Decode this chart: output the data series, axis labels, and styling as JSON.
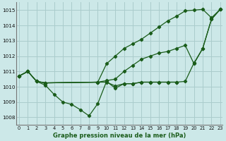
{
  "xlabel": "Graphe pression niveau de la mer (hPa)",
  "xlim": [
    -0.3,
    23.3
  ],
  "ylim": [
    1007.5,
    1015.5
  ],
  "yticks": [
    1008,
    1009,
    1010,
    1011,
    1012,
    1013,
    1014,
    1015
  ],
  "xticks": [
    0,
    1,
    2,
    3,
    4,
    5,
    6,
    7,
    8,
    9,
    10,
    11,
    12,
    13,
    14,
    15,
    16,
    17,
    18,
    19,
    20,
    21,
    22,
    23
  ],
  "background_color": "#cce8e8",
  "grid_color": "#aacccc",
  "line_color": "#1a5c1a",
  "line1_x": [
    0,
    1,
    2,
    3,
    9,
    10,
    11,
    12,
    13,
    14,
    15,
    16,
    17,
    18,
    19,
    20,
    21,
    22,
    23
  ],
  "line1_y": [
    1010.7,
    1011.0,
    1010.35,
    1010.25,
    1010.3,
    1011.5,
    1012.0,
    1012.5,
    1012.8,
    1013.1,
    1013.5,
    1013.9,
    1014.3,
    1014.6,
    1014.95,
    1015.0,
    1015.05,
    1014.5,
    1015.05
  ],
  "line2_x": [
    0,
    1,
    2,
    3,
    9,
    10,
    11,
    12,
    13,
    14,
    15,
    16,
    17,
    18,
    19,
    20,
    21,
    22,
    23
  ],
  "line2_y": [
    1010.7,
    1011.0,
    1010.35,
    1010.25,
    1010.3,
    1010.4,
    1010.5,
    1011.0,
    1011.4,
    1011.8,
    1012.0,
    1012.2,
    1012.3,
    1012.5,
    1012.7,
    1011.5,
    1012.5,
    1014.4,
    1015.05
  ],
  "line3_x": [
    0,
    1,
    2,
    3,
    9,
    10,
    11,
    12,
    13,
    14,
    15,
    16,
    17,
    18,
    19,
    20,
    21,
    22,
    23
  ],
  "line3_y": [
    1010.7,
    1011.0,
    1010.35,
    1010.25,
    1010.3,
    1010.3,
    1010.05,
    1010.2,
    1010.2,
    1010.3,
    1010.3,
    1010.3,
    1010.3,
    1010.3,
    1010.35,
    1011.55,
    1012.5,
    1014.4,
    1015.05
  ],
  "line4_x": [
    0,
    1,
    2,
    3,
    4,
    5,
    6,
    7,
    8,
    9,
    10,
    11,
    12,
    13,
    14,
    15,
    16,
    17,
    18
  ],
  "line4_y": [
    1010.7,
    1011.0,
    1010.35,
    1010.1,
    1009.5,
    1009.0,
    1008.85,
    1008.5,
    1008.1,
    1008.9,
    1010.35,
    1009.9,
    1010.2,
    1010.2,
    1010.3,
    1010.3,
    1010.3,
    1010.3,
    1010.3
  ]
}
